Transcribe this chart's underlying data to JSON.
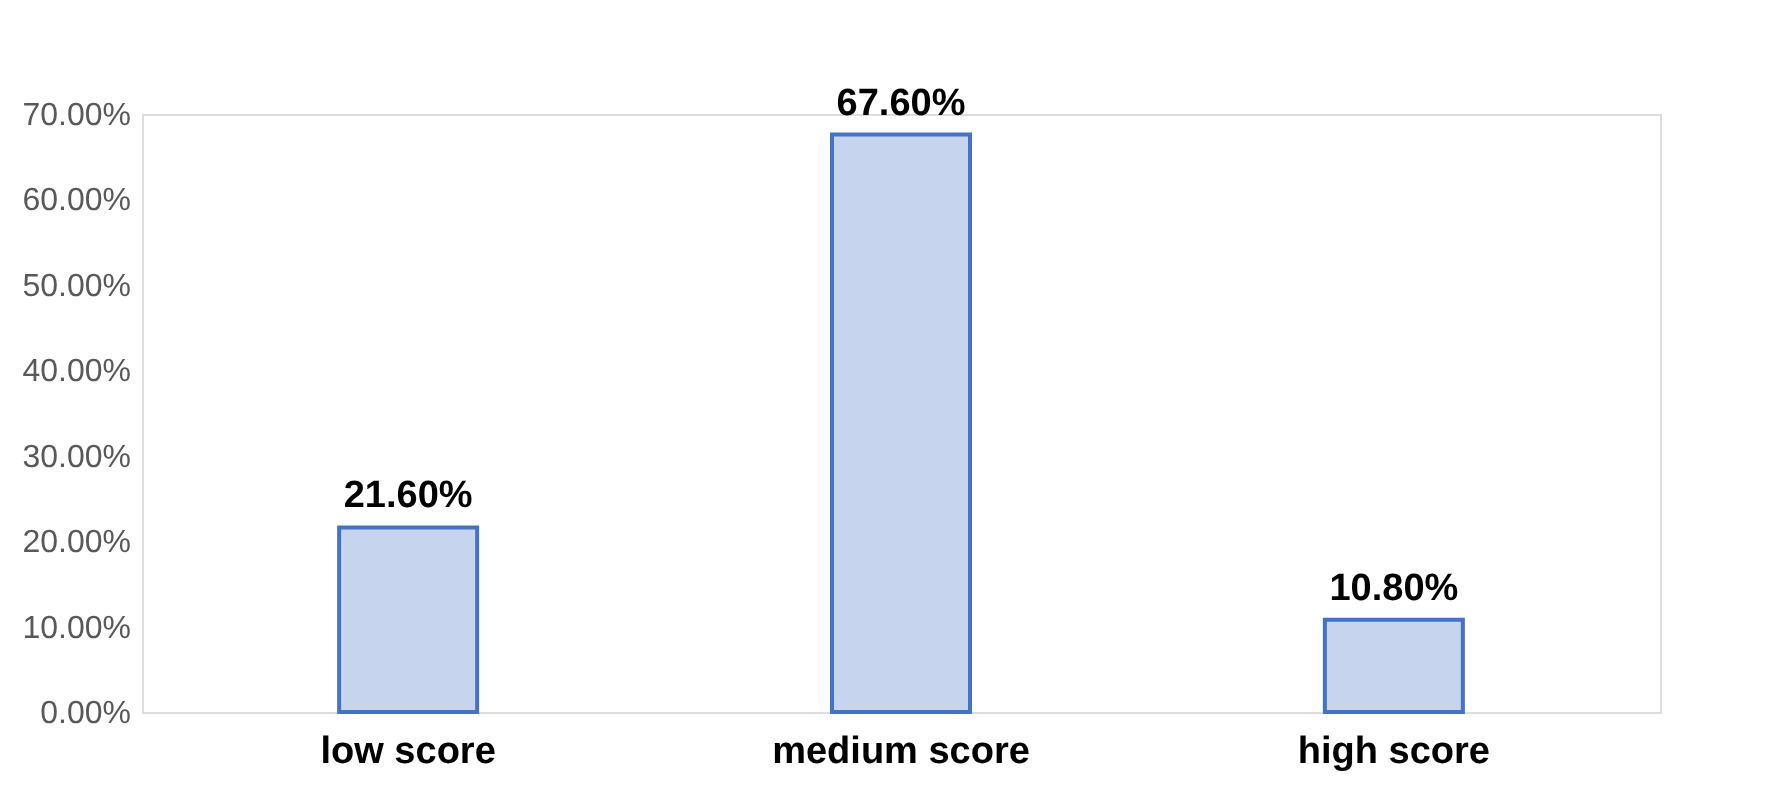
{
  "chart_data": {
    "type": "bar",
    "categories": [
      "low score",
      "medium score",
      "high score"
    ],
    "values": [
      21.6,
      67.6,
      10.8
    ],
    "color": "#4472c4",
    "value_labels": [
      "21.60%",
      "67.60%",
      "10.80%"
    ],
    "ylim": [
      0,
      70
    ],
    "yticks": [
      {
        "value": 0,
        "label": "0.00%"
      },
      {
        "value": 10,
        "label": "10.00%"
      },
      {
        "value": 20,
        "label": "20.00%"
      },
      {
        "value": 30,
        "label": "30.00%"
      },
      {
        "value": 40,
        "label": "40.00%"
      },
      {
        "value": 50,
        "label": "50.00%"
      },
      {
        "value": 60,
        "label": "60.00%"
      },
      {
        "value": 70,
        "label": "70.00%"
      }
    ],
    "grid": false
  }
}
